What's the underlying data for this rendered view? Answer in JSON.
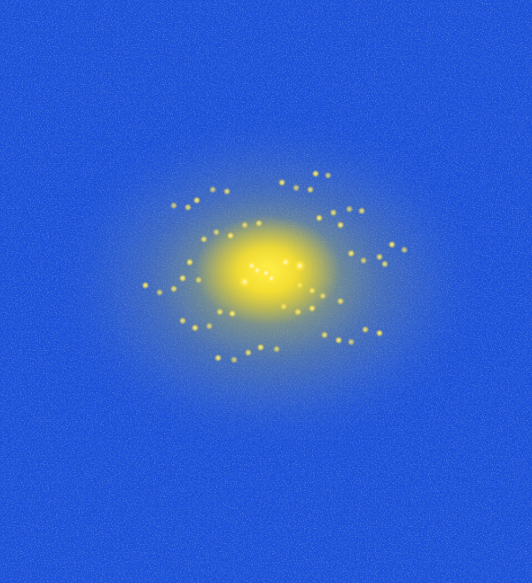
{
  "image": {
    "kind": "diffraction-pattern",
    "colors": {
      "background": "#1a50d8",
      "noise_light": "#8fb0f0",
      "halo": "#b8c24a",
      "glow": "#ffe52a",
      "spot_core": "#fffbe0"
    }
  }
}
